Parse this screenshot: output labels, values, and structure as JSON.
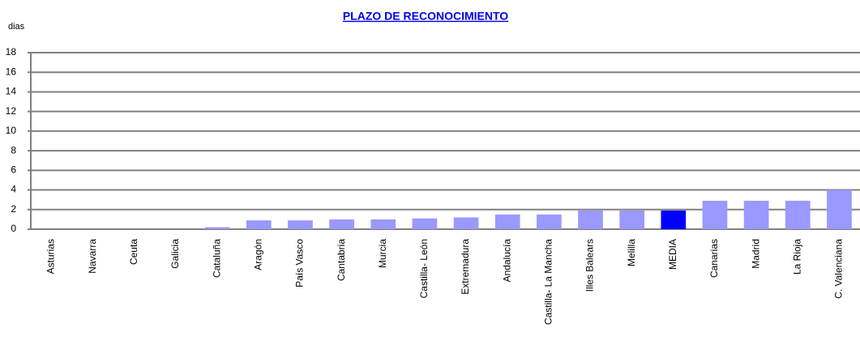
{
  "chart_data": {
    "type": "bar",
    "title": "PLAZO DE RECONOCIMIENTO",
    "y_label": "dias",
    "categories": [
      "Asturias",
      "Navarra",
      "Ceuta",
      "Galicia",
      "Cataluña",
      "Aragón",
      "País Vasco",
      "Cantabria",
      "Murcia",
      "Castilla- León",
      "Extremadura",
      "Andalucía",
      "Castilla- La Mancha",
      "Illes Balears",
      "Melilla",
      "MEDIA",
      "Canarias",
      "Madrid",
      "La Rioja",
      "C. Valenciana"
    ],
    "values": [
      0,
      0,
      0,
      0,
      0.2,
      0.9,
      0.9,
      1.0,
      1.0,
      1.1,
      1.2,
      1.5,
      1.5,
      1.9,
      1.9,
      1.9,
      2.9,
      2.9,
      2.9,
      4.0
    ],
    "colors": [
      "#9999ff",
      "#9999ff",
      "#9999ff",
      "#9999ff",
      "#9999ff",
      "#9999ff",
      "#9999ff",
      "#9999ff",
      "#9999ff",
      "#9999ff",
      "#9999ff",
      "#9999ff",
      "#9999ff",
      "#9999ff",
      "#9999ff",
      "#0000ff",
      "#9999ff",
      "#9999ff",
      "#9999ff",
      "#9999ff"
    ],
    "ylim": [
      0,
      18
    ],
    "yticks": [
      0,
      2,
      4,
      6,
      8,
      10,
      12,
      14,
      16,
      18
    ],
    "grid": true
  }
}
